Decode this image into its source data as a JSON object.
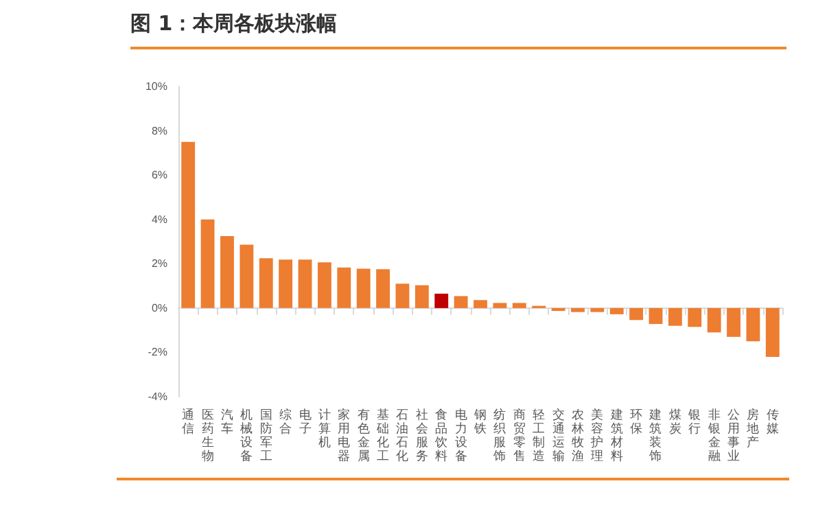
{
  "chart_data": {
    "type": "bar",
    "title": "图 1：本周各板块涨幅",
    "categories": [
      "通信",
      "医药生物",
      "汽车",
      "机械设备",
      "国防军工",
      "综合",
      "电子",
      "计算机",
      "家用电器",
      "有色金属",
      "基础化工",
      "石油石化",
      "社会服务",
      "食品饮料",
      "电力设备",
      "钢铁",
      "纺织服饰",
      "商贸零售",
      "轻工制造",
      "交通运输",
      "农林牧渔",
      "美容护理",
      "建筑材料",
      "环保",
      "建筑装饰",
      "煤炭",
      "银行",
      "非银金融",
      "公用事业",
      "房地产",
      "传媒"
    ],
    "values": [
      7.5,
      4.0,
      3.25,
      2.86,
      2.25,
      2.19,
      2.19,
      2.06,
      1.83,
      1.78,
      1.75,
      1.1,
      1.03,
      0.65,
      0.54,
      0.36,
      0.23,
      0.23,
      0.1,
      -0.13,
      -0.18,
      -0.18,
      -0.28,
      -0.54,
      -0.72,
      -0.8,
      -0.85,
      -1.1,
      -1.3,
      -1.5,
      -2.2
    ],
    "colors": [
      "#ed7d31",
      "#ed7d31",
      "#ed7d31",
      "#ed7d31",
      "#ed7d31",
      "#ed7d31",
      "#ed7d31",
      "#ed7d31",
      "#ed7d31",
      "#ed7d31",
      "#ed7d31",
      "#ed7d31",
      "#ed7d31",
      "#c00000",
      "#ed7d31",
      "#ed7d31",
      "#ed7d31",
      "#ed7d31",
      "#ed7d31",
      "#ed7d31",
      "#ed7d31",
      "#ed7d31",
      "#ed7d31",
      "#ed7d31",
      "#ed7d31",
      "#ed7d31",
      "#ed7d31",
      "#ed7d31",
      "#ed7d31",
      "#ed7d31",
      "#ed7d31"
    ],
    "ylim": [
      -4,
      10
    ],
    "yticks": [
      {
        "value": -4,
        "label": "-4%"
      },
      {
        "value": -2,
        "label": "-2%"
      },
      {
        "value": 0,
        "label": "0%"
      },
      {
        "value": 2,
        "label": "2%"
      },
      {
        "value": 4,
        "label": "4%"
      },
      {
        "value": 6,
        "label": "6%"
      },
      {
        "value": 8,
        "label": "8%"
      },
      {
        "value": 10,
        "label": "10%"
      }
    ],
    "relative": false
  }
}
